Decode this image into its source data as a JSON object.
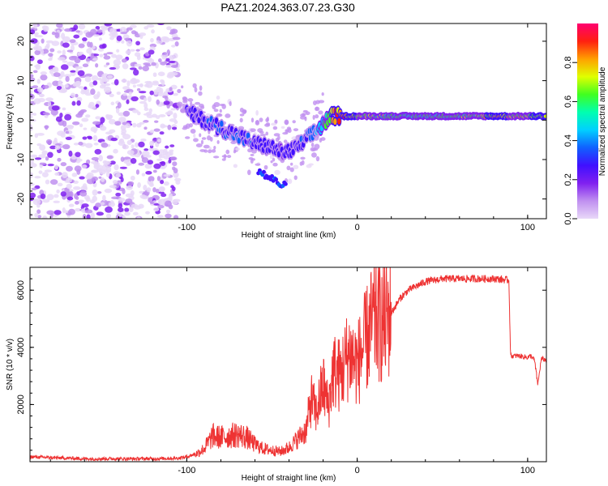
{
  "title": "PAZ1.2024.363.07.23.G30",
  "chart_data": [
    {
      "type": "heatmap",
      "xlabel": "Height of straight line (km)",
      "ylabel": "Frequency (Hz)",
      "xlim": [
        -192,
        111
      ],
      "ylim": [
        -25,
        24.5
      ],
      "x_ticks": [
        -100,
        0,
        100
      ],
      "y_ticks": [
        -20,
        -10,
        0,
        10,
        20
      ],
      "colorbar": {
        "label": "Normalized spectral amplitude",
        "range": [
          0,
          1
        ],
        "ticks": [
          0.0,
          0.2,
          0.4,
          0.6,
          0.8
        ],
        "colors": [
          "#e8d8f8",
          "#c090f0",
          "#8020f0",
          "#4010ff",
          "#1060ff",
          "#00d0ff",
          "#00ffb0",
          "#40ff20",
          "#e0ff00",
          "#ffa000",
          "#ff2010",
          "#ff0070"
        ]
      },
      "ridge": {
        "x": [
          -100,
          -90,
          -80,
          -70,
          -60,
          -50,
          -45,
          -40,
          -35,
          -30,
          -25,
          -20,
          -15,
          -10,
          0,
          10,
          20,
          30,
          40,
          50,
          60,
          70,
          80,
          90,
          100,
          111
        ],
        "freq": [
          2,
          0,
          -2,
          -4,
          -6,
          -7,
          -8,
          -8,
          -7,
          -5,
          -3,
          -1,
          1,
          1,
          1,
          1,
          1,
          1,
          1,
          1,
          1,
          1,
          1,
          1,
          1,
          1
        ],
        "amplitude": [
          0.3,
          0.3,
          0.35,
          0.35,
          0.3,
          0.3,
          0.25,
          0.3,
          0.3,
          0.35,
          0.4,
          0.55,
          0.8,
          0.95,
          0.75,
          0.7,
          0.65,
          0.65,
          0.65,
          0.65,
          0.65,
          0.7,
          0.8,
          0.75,
          0.75,
          0.8
        ]
      },
      "noise_region_x": [
        -192,
        -105
      ]
    },
    {
      "type": "line",
      "xlabel": "Height of straight line (km)",
      "ylabel": "SNR (10 * v/v)",
      "xlim": [
        -192,
        111
      ],
      "ylim": [
        0,
        6800
      ],
      "x_ticks": [
        -100,
        0,
        100
      ],
      "y_ticks": [
        2000,
        4000,
        6000
      ],
      "color": "#ee3333",
      "series": [
        {
          "x": [
            -192,
            -180,
            -160,
            -140,
            -120,
            -105,
            -100,
            -95,
            -90,
            -87,
            -85,
            -80,
            -75,
            -70,
            -65,
            -60,
            -55,
            -50,
            -45,
            -40,
            -35,
            -30,
            -27,
            -24,
            -20,
            -17,
            -14,
            -10,
            -5,
            0,
            5,
            10,
            15,
            20,
            25,
            30,
            40,
            50,
            60,
            70,
            80,
            89,
            90,
            92,
            95,
            100,
            102,
            104,
            106,
            108,
            111
          ],
          "y": [
            150,
            120,
            80,
            80,
            80,
            100,
            150,
            250,
            450,
            700,
            900,
            850,
            900,
            950,
            850,
            600,
            450,
            400,
            350,
            500,
            800,
            1100,
            2200,
            1700,
            2700,
            1900,
            3200,
            3000,
            3800,
            3400,
            4200,
            5000,
            4800,
            5200,
            5700,
            6000,
            6300,
            6400,
            6400,
            6400,
            6400,
            6350,
            3700,
            3700,
            3700,
            3650,
            3700,
            3550,
            2700,
            3600,
            3550
          ]
        }
      ]
    }
  ]
}
